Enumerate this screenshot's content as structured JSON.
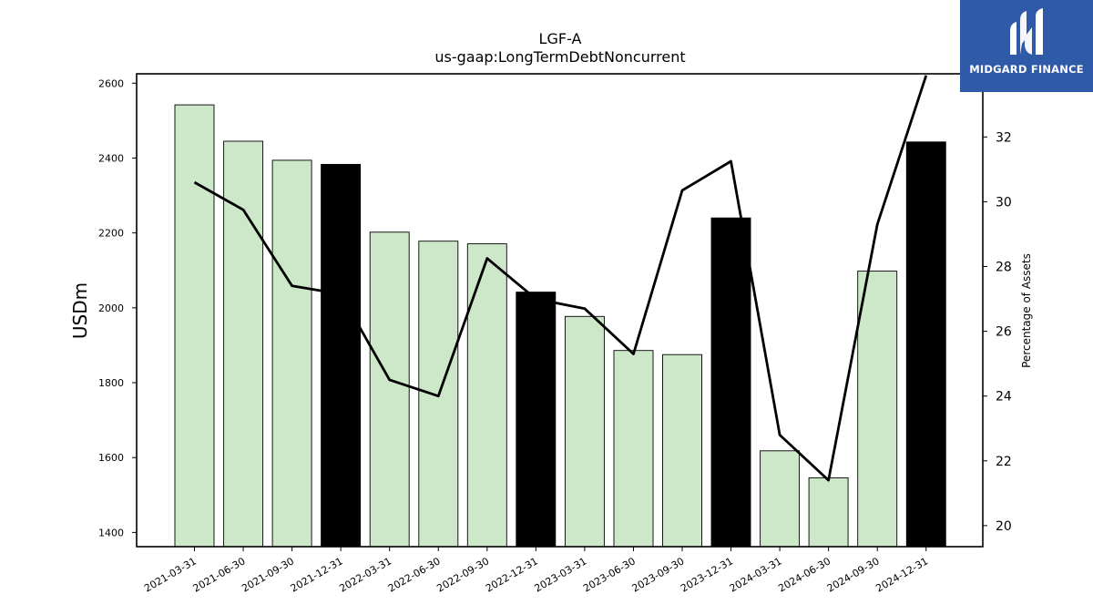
{
  "chart_data": {
    "type": "bar",
    "title": "LGF-A",
    "subtitle": "us-gaap:LongTermDebtNoncurrent",
    "ylabel": "USDm",
    "y2label": "Percentage of Assets",
    "categories": [
      "2021-03-31",
      "2021-06-30",
      "2021-09-30",
      "2021-12-31",
      "2022-03-31",
      "2022-06-30",
      "2022-09-30",
      "2022-12-31",
      "2023-03-31",
      "2023-06-30",
      "2023-09-30",
      "2023-12-31",
      "2024-03-31",
      "2024-06-30",
      "2024-09-30",
      "2024-12-31"
    ],
    "series": [
      {
        "type": "bar",
        "values": [
          2542,
          2445,
          2394,
          2383,
          2202,
          2178,
          2171,
          2042,
          1977,
          1886,
          1875,
          2240,
          1618,
          1546,
          2098,
          2443
        ],
        "colors": [
          "#cde8c8",
          "#cde8c8",
          "#cde8c8",
          "#000000",
          "#cde8c8",
          "#cde8c8",
          "#cde8c8",
          "#000000",
          "#cde8c8",
          "#cde8c8",
          "#cde8c8",
          "#000000",
          "#cde8c8",
          "#cde8c8",
          "#cde8c8",
          "#000000"
        ]
      },
      {
        "type": "line",
        "axis": "right",
        "values": [
          30.6,
          29.75,
          27.4,
          27.15,
          24.5,
          24.0,
          28.25,
          27.0,
          26.7,
          25.3,
          30.35,
          31.25,
          22.8,
          21.4,
          29.3,
          33.9
        ],
        "color": "#000000"
      }
    ],
    "ylim": [
      1362,
      2625
    ],
    "y2lim": [
      19.35,
      33.95
    ],
    "yticks": [
      1400,
      1600,
      1800,
      2000,
      2200,
      2400,
      2600
    ],
    "y2ticks": [
      20,
      22,
      24,
      26,
      28,
      30,
      32
    ],
    "grid": false
  },
  "logo": {
    "text": "MIDGARD FINANCE"
  }
}
